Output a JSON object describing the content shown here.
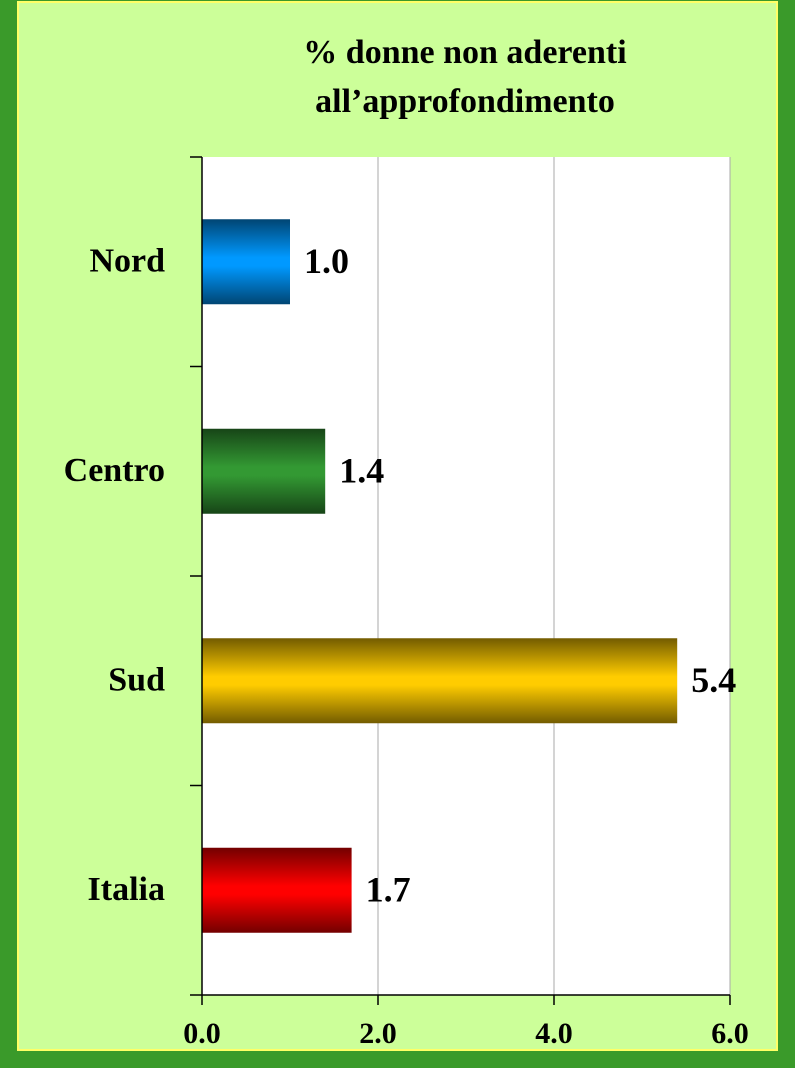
{
  "chart_data": {
    "type": "hbar",
    "title": [
      "% donne non aderenti",
      "all’approfondimento"
    ],
    "categories": [
      "Nord",
      "Centro",
      "Sud",
      "Italia"
    ],
    "values": [
      1.0,
      1.4,
      5.4,
      1.7
    ],
    "value_labels": [
      "1.0",
      "1.4",
      "5.4",
      "1.7"
    ],
    "colors": [
      "#0099ff",
      "#339933",
      "#ffcc00",
      "#ff0000"
    ],
    "xlim": [
      0,
      6
    ],
    "xticks": [
      {
        "value": 0,
        "label": "0.0"
      },
      {
        "value": 2,
        "label": "2.0"
      },
      {
        "value": 4,
        "label": "4.0"
      },
      {
        "value": 6,
        "label": "6.0"
      }
    ],
    "grid": true
  }
}
